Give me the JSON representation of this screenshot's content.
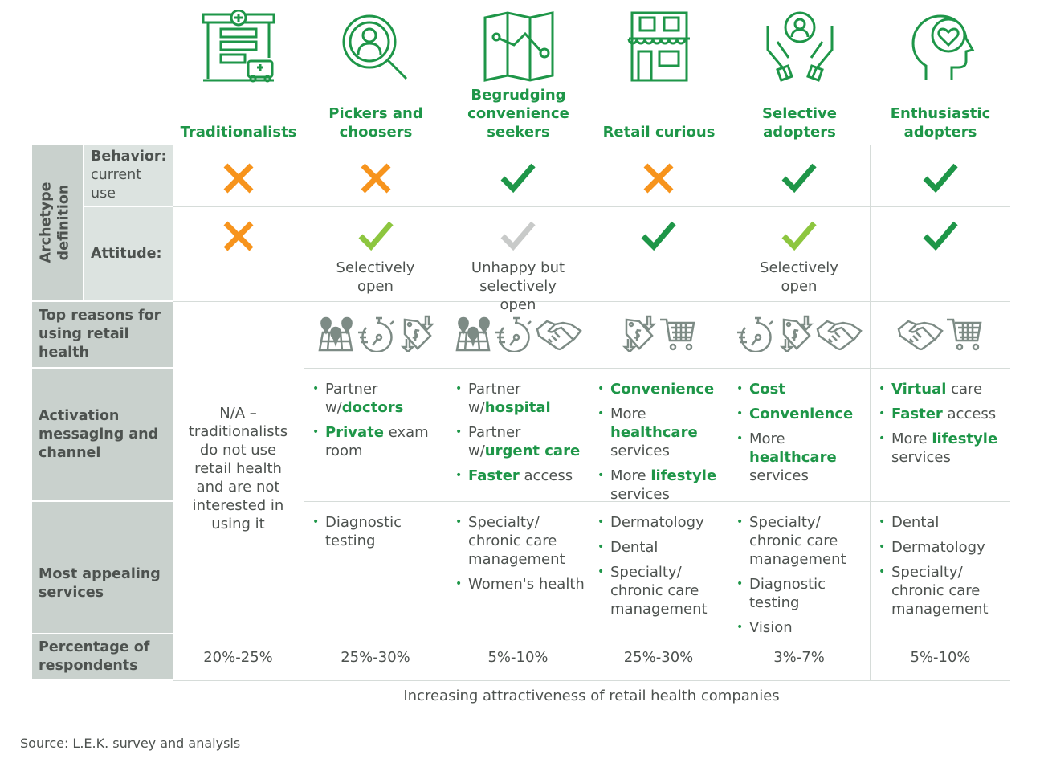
{
  "colors": {
    "green": "#1e9648",
    "orange": "#f7941d",
    "lime": "#8dc63f",
    "gray": "#c8cac9",
    "icon_gray": "#7d8b85",
    "side_dark": "#c9d1cd",
    "side_light": "#dce3e0"
  },
  "columns": [
    {
      "label": "Traditionalists",
      "icon": "pharmacy-store-icon",
      "behavior": "x",
      "attitude": "x",
      "attitude_text": "",
      "reason_icons": [],
      "messaging": [],
      "services": [],
      "percentage": "20%-25%"
    },
    {
      "label": "Pickers and choosers",
      "icon": "person-magnifier-icon",
      "behavior": "x",
      "attitude": "check-lime",
      "attitude_text": "Selectively open",
      "reason_icons": [
        "map-pins-icon",
        "stopwatch-icon",
        "price-tag-icon"
      ],
      "messaging": [
        [
          {
            "t": "Partner w/"
          },
          {
            "t": "doctors",
            "b": true
          }
        ],
        [
          {
            "t": "Private",
            "b": true
          },
          {
            "t": " exam room"
          }
        ]
      ],
      "services": [
        [
          {
            "t": "Diagnostic testing"
          }
        ]
      ],
      "percentage": "25%-30%"
    },
    {
      "label": "Begrudging convenience seekers",
      "icon": "folded-map-icon",
      "behavior": "check",
      "attitude": "check-gray",
      "attitude_text": "Unhappy but selectively open",
      "reason_icons": [
        "map-pins-icon",
        "stopwatch-icon",
        "handshake-icon"
      ],
      "messaging": [
        [
          {
            "t": "Partner w/"
          },
          {
            "t": "hospital",
            "b": true
          }
        ],
        [
          {
            "t": "Partner w/"
          },
          {
            "t": "urgent care",
            "b": true
          }
        ],
        [
          {
            "t": "Faster",
            "b": true
          },
          {
            "t": " access"
          }
        ]
      ],
      "services": [
        [
          {
            "t": "Specialty/ chronic care management"
          }
        ],
        [
          {
            "t": "Women's health"
          }
        ]
      ],
      "percentage": "5%-10%"
    },
    {
      "label": "Retail curious",
      "icon": "storefront-icon",
      "behavior": "x",
      "attitude": "check",
      "attitude_text": "",
      "reason_icons": [
        "price-tag-icon",
        "shopping-cart-icon"
      ],
      "messaging": [
        [
          {
            "t": "Convenience",
            "b": true
          }
        ],
        [
          {
            "t": "More "
          },
          {
            "t": "healthcare",
            "b": true
          },
          {
            "t": " services"
          }
        ],
        [
          {
            "t": "More "
          },
          {
            "t": "lifestyle",
            "b": true
          },
          {
            "t": " services"
          }
        ]
      ],
      "services": [
        [
          {
            "t": "Dermatology"
          }
        ],
        [
          {
            "t": "Dental"
          }
        ],
        [
          {
            "t": "Specialty/ chronic care management"
          }
        ]
      ],
      "percentage": "25%-30%"
    },
    {
      "label": "Selective adopters",
      "icon": "hands-person-icon",
      "behavior": "check",
      "attitude": "check-lime",
      "attitude_text": "Selectively open",
      "reason_icons": [
        "stopwatch-icon",
        "price-tag-icon",
        "handshake-icon"
      ],
      "messaging": [
        [
          {
            "t": "Cost",
            "b": true
          }
        ],
        [
          {
            "t": "Convenience",
            "b": true
          }
        ],
        [
          {
            "t": "More "
          },
          {
            "t": "healthcare",
            "b": true
          },
          {
            "t": " services"
          }
        ]
      ],
      "services": [
        [
          {
            "t": "Specialty/ chronic care management"
          }
        ],
        [
          {
            "t": "Diagnostic testing"
          }
        ],
        [
          {
            "t": "Vision"
          }
        ]
      ],
      "percentage": "3%-7%"
    },
    {
      "label": "Enthusiastic adopters",
      "icon": "head-heart-icon",
      "behavior": "check",
      "attitude": "check",
      "attitude_text": "",
      "reason_icons": [
        "handshake-icon",
        "shopping-cart-icon"
      ],
      "messaging": [
        [
          {
            "t": "Virtual",
            "b": true
          },
          {
            "t": " care"
          }
        ],
        [
          {
            "t": "Faster",
            "b": true
          },
          {
            "t": " access"
          }
        ],
        [
          {
            "t": "More "
          },
          {
            "t": "lifestyle",
            "b": true
          },
          {
            "t": " services"
          }
        ]
      ],
      "services": [
        [
          {
            "t": "Dental"
          }
        ],
        [
          {
            "t": "Dermatology"
          }
        ],
        [
          {
            "t": "Specialty/ chronic care management"
          }
        ]
      ],
      "percentage": "5%-10%"
    }
  ],
  "rows": {
    "archetype": "Archetype definition",
    "behavior_bold": "Behavior:",
    "behavior_rest": "current use",
    "attitude": "Attitude:",
    "reasons": "Top reasons for using retail health",
    "messaging": "Activation messaging and channel",
    "services": "Most appealing services",
    "percentage": "Percentage of respondents"
  },
  "traditionalists_na": "N/A – traditionalists do not use retail health and are not interested in using it",
  "footer_axis": "Increasing attractiveness of retail health companies",
  "source": "Source: L.E.K. survey and analysis"
}
